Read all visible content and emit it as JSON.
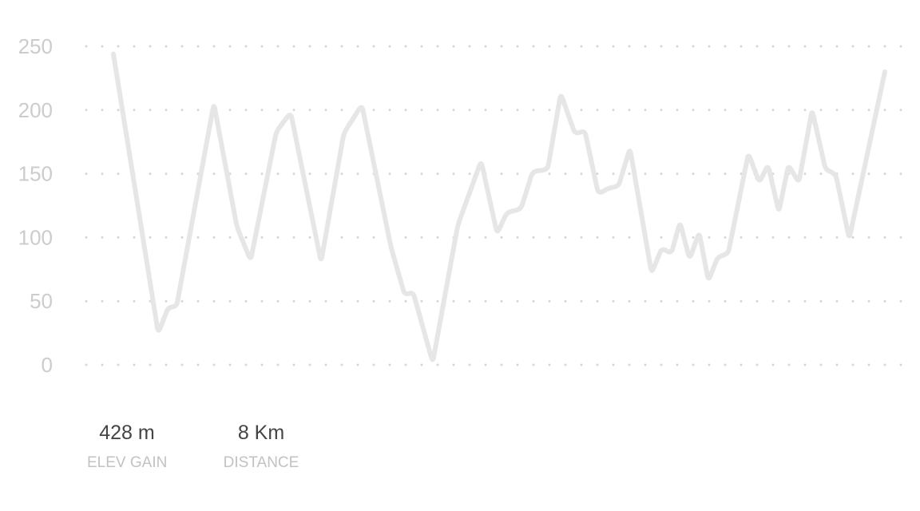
{
  "chart_data": {
    "type": "line",
    "title": "",
    "xlabel": "",
    "ylabel": "",
    "ylim": [
      0,
      250
    ],
    "y_ticks": [
      0,
      50,
      100,
      150,
      200,
      250
    ],
    "grid": true,
    "grid_style": "dotted-horizontal",
    "line_color": "#e6e6e6",
    "series": [
      {
        "values": [
          244,
          25,
          45,
          46,
          205,
          108,
          82,
          183,
          198,
          81,
          182,
          204,
          92,
          55,
          57,
          2,
          110,
          160,
          103,
          120,
          122,
          152,
          153,
          213,
          181,
          184,
          134,
          139,
          140,
          170,
          72,
          92,
          87,
          112,
          83,
          104,
          66,
          85,
          87,
          166,
          143,
          157,
          120,
          157,
          143,
          200,
          153,
          150,
          99,
          230
        ],
        "x": [
          0,
          11.2,
          13.7,
          15.8,
          25.1,
          30.9,
          34.3,
          40.7,
          44.3,
          51.9,
          57.6,
          62.1,
          69.4,
          72.8,
          74.9,
          79.8,
          86.1,
          91.9,
          95.9,
          98.4,
          101.8,
          104.8,
          108.5,
          111.8,
          115.4,
          117.8,
          121.2,
          123.9,
          126.2,
          129.1,
          134.5,
          137.1,
          139.4,
          141.6,
          144.0,
          146.4,
          148.7,
          151.1,
          153.6,
          158.7,
          161.4,
          163.6,
          166.3,
          168.7,
          171.3,
          174.6,
          178.0,
          180.5,
          183.9,
          192.8
        ]
      }
    ]
  },
  "stats": [
    {
      "value": "428 m",
      "label": "ELEV GAIN"
    },
    {
      "value": "8 Km",
      "label": "DISTANCE"
    }
  ]
}
